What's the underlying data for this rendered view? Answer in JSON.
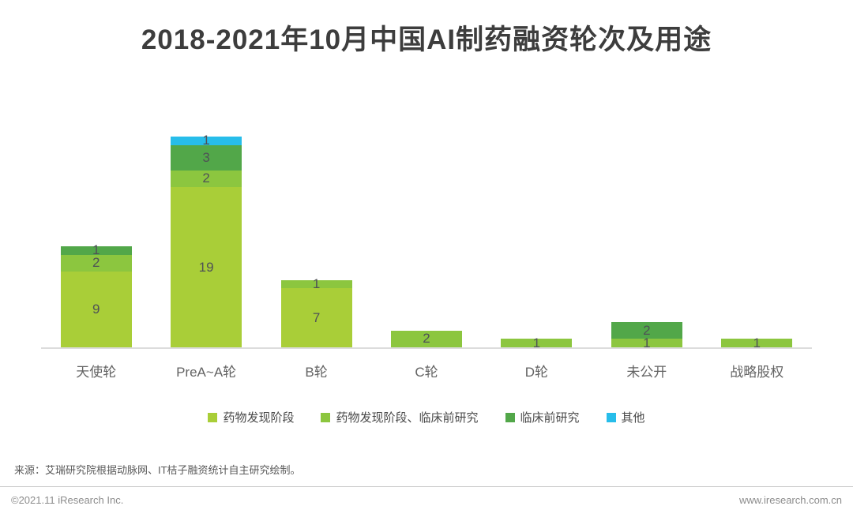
{
  "title": "2018-2021年10月中国AI制药融资轮次及用途",
  "chart_data": {
    "type": "bar",
    "stacked": true,
    "title": "2018-2021年10月中国AI制药融资轮次及用途",
    "categories": [
      "天使轮",
      "PreA~A轮",
      "B轮",
      "C轮",
      "D轮",
      "未公开",
      "战略股权"
    ],
    "series": [
      {
        "name": "药物发现阶段",
        "color": "#a9ce38",
        "values": [
          9,
          19,
          7,
          0,
          0,
          0,
          0
        ]
      },
      {
        "name": "药物发现阶段、临床前研究",
        "color": "#8cc63f",
        "values": [
          2,
          2,
          1,
          2,
          1,
          1,
          1
        ]
      },
      {
        "name": "临床前研究",
        "color": "#52a749",
        "values": [
          1,
          3,
          0,
          0,
          0,
          2,
          0
        ]
      },
      {
        "name": "其他",
        "color": "#27bdea",
        "values": [
          0,
          1,
          0,
          0,
          0,
          0,
          0
        ]
      }
    ],
    "totals": [
      12,
      25,
      8,
      2,
      1,
      3,
      1
    ],
    "xlabel": "",
    "ylabel": "",
    "ylim": [
      0,
      25
    ],
    "grid": false,
    "legend_position": "bottom",
    "value_labels": "inside-segments"
  },
  "source": "来源：艾瑞研究院根据动脉网、IT桔子融资统计自主研究绘制。",
  "footer": {
    "left": "©2021.11 iResearch Inc.",
    "right": "www.iresearch.com.cn"
  }
}
